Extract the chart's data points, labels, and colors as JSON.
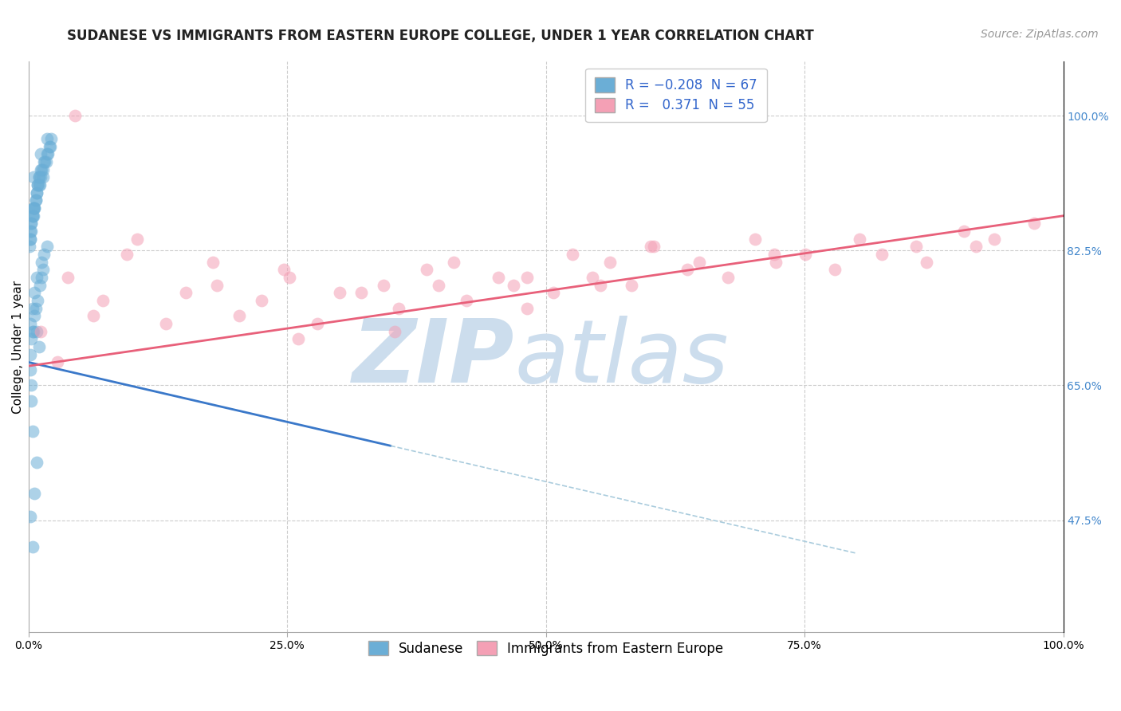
{
  "title": "SUDANESE VS IMMIGRANTS FROM EASTERN EUROPE COLLEGE, UNDER 1 YEAR CORRELATION CHART",
  "source": "Source: ZipAtlas.com",
  "ylabel": "College, Under 1 year",
  "xlabel": "",
  "xlim": [
    0.0,
    100.0
  ],
  "ylim": [
    33.0,
    107.0
  ],
  "right_ytick_labels": [
    "47.5%",
    "65.0%",
    "82.5%",
    "100.0%"
  ],
  "right_ytick_values": [
    47.5,
    65.0,
    82.5,
    100.0
  ],
  "xtick_labels": [
    "0.0%",
    "25.0%",
    "50.0%",
    "75.0%",
    "100.0%"
  ],
  "xtick_values": [
    0.0,
    25.0,
    50.0,
    75.0,
    100.0
  ],
  "blue_R": -0.208,
  "blue_N": 67,
  "pink_R": 0.371,
  "pink_N": 55,
  "blue_color": "#6baed6",
  "pink_color": "#f4a0b5",
  "blue_line_color": "#3a78c9",
  "pink_line_color": "#e8607a",
  "blue_scatter_x": [
    0.5,
    1.2,
    0.8,
    1.5,
    2.0,
    0.3,
    0.6,
    1.0,
    1.8,
    0.2,
    0.4,
    0.9,
    1.3,
    0.3,
    0.7,
    1.1,
    1.6,
    0.5,
    1.4,
    2.2,
    0.1,
    0.4,
    0.8,
    1.2,
    1.9,
    0.2,
    0.6,
    1.0,
    1.7,
    0.5,
    0.9,
    1.4,
    2.1,
    0.3,
    0.7,
    1.2,
    1.8,
    0.2,
    0.5,
    1.0,
    0.4,
    0.8,
    1.5,
    0.2,
    0.6,
    0.3,
    0.7,
    0.4,
    1.1,
    0.2,
    0.6,
    1.3,
    0.2,
    0.5,
    0.9,
    0.3,
    1.4,
    0.3,
    0.8,
    1.8,
    0.4,
    1.0,
    0.8,
    0.6,
    0.2,
    1.3,
    0.4
  ],
  "blue_scatter_y": [
    92,
    95,
    90,
    94,
    96,
    86,
    88,
    92,
    97,
    84,
    87,
    91,
    93,
    85,
    89,
    91,
    94,
    88,
    92,
    97,
    83,
    87,
    90,
    93,
    95,
    85,
    88,
    92,
    94,
    87,
    91,
    93,
    96,
    86,
    89,
    92,
    95,
    84,
    88,
    91,
    75,
    79,
    82,
    73,
    77,
    71,
    75,
    72,
    78,
    69,
    74,
    79,
    67,
    72,
    76,
    65,
    80,
    63,
    72,
    83,
    59,
    70,
    55,
    51,
    48,
    81,
    44
  ],
  "pink_scatter_x": [
    1.2,
    4.5,
    7.2,
    3.8,
    10.5,
    6.3,
    15.2,
    9.5,
    13.3,
    18.2,
    22.5,
    17.8,
    25.2,
    20.4,
    30.1,
    24.7,
    34.3,
    27.9,
    38.5,
    32.2,
    41.1,
    35.8,
    45.4,
    39.6,
    48.2,
    42.3,
    52.6,
    46.9,
    56.2,
    50.7,
    60.1,
    54.5,
    64.8,
    58.3,
    70.2,
    63.7,
    75.1,
    67.6,
    80.3,
    72.2,
    85.8,
    77.9,
    90.4,
    82.5,
    93.3,
    86.8,
    97.2,
    91.6,
    60.4,
    72.1,
    55.3,
    48.2,
    35.4,
    26.1,
    2.8
  ],
  "pink_scatter_y": [
    72,
    100,
    76,
    79,
    84,
    74,
    77,
    82,
    73,
    78,
    76,
    81,
    79,
    74,
    77,
    80,
    78,
    73,
    80,
    77,
    81,
    75,
    79,
    78,
    79,
    76,
    82,
    78,
    81,
    77,
    83,
    79,
    81,
    78,
    84,
    80,
    82,
    79,
    84,
    81,
    83,
    80,
    85,
    82,
    84,
    81,
    86,
    83,
    83,
    82,
    78,
    75,
    72,
    71,
    68
  ],
  "blue_line_x_solid_start": 0.0,
  "blue_line_x_solid_end": 35.0,
  "blue_line_y_at_0": 68.0,
  "blue_line_y_at_100": 37.0,
  "pink_line_x_start": 0.0,
  "pink_line_x_end": 100.0,
  "pink_line_y_start": 67.5,
  "pink_line_y_end": 87.0,
  "watermark_zip": "ZIP",
  "watermark_atlas": "atlas",
  "watermark_color": "#ccdded",
  "legend_blue_label": "Sudanese",
  "legend_pink_label": "Immigrants from Eastern Europe",
  "grid_color": "#cccccc",
  "background_color": "#ffffff",
  "title_fontsize": 12,
  "axis_label_fontsize": 11,
  "tick_fontsize": 10,
  "legend_fontsize": 12,
  "source_fontsize": 10
}
